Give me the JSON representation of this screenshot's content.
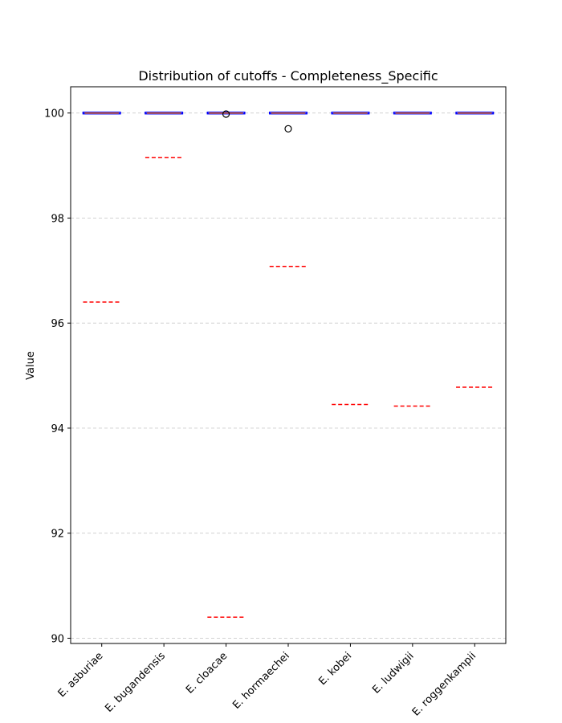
{
  "chart_data": {
    "type": "box",
    "title": "Distribution of cutoffs - Completeness_Specific",
    "xlabel": "",
    "ylabel": "Value",
    "ylim": [
      89.9,
      100.5
    ],
    "yticks": [
      90,
      92,
      94,
      96,
      98,
      100
    ],
    "grid": "y-axis dashed",
    "categories": [
      "E. asburiae",
      "E. bugandensis",
      "E. cloacae",
      "E. hormaechei",
      "E. kobei",
      "E. ludwigii",
      "E. roggenkampii"
    ],
    "boxes": [
      {
        "q1": 100,
        "median": 100,
        "q3": 100,
        "whisker_low": 100,
        "whisker_high": 100,
        "outliers": []
      },
      {
        "q1": 100,
        "median": 100,
        "q3": 100,
        "whisker_low": 100,
        "whisker_high": 100,
        "outliers": []
      },
      {
        "q1": 100,
        "median": 100,
        "q3": 100,
        "whisker_low": 100,
        "whisker_high": 100,
        "outliers": [
          99.98
        ]
      },
      {
        "q1": 100,
        "median": 100,
        "q3": 100,
        "whisker_low": 100,
        "whisker_high": 100,
        "outliers": [
          99.7
        ]
      },
      {
        "q1": 100,
        "median": 100,
        "q3": 100,
        "whisker_low": 100,
        "whisker_high": 100,
        "outliers": []
      },
      {
        "q1": 100,
        "median": 100,
        "q3": 100,
        "whisker_low": 100,
        "whisker_high": 100,
        "outliers": []
      },
      {
        "q1": 100,
        "median": 100,
        "q3": 100,
        "whisker_low": 100,
        "whisker_high": 100,
        "outliers": []
      }
    ],
    "cutoffs": [
      96.4,
      99.15,
      90.4,
      97.08,
      94.45,
      94.42,
      94.78
    ],
    "colors": {
      "box": "#0000ff",
      "median": "#ff7f0e",
      "cutoff": "#ff0000",
      "outlier": "#000000",
      "grid": "#cccccc"
    }
  }
}
